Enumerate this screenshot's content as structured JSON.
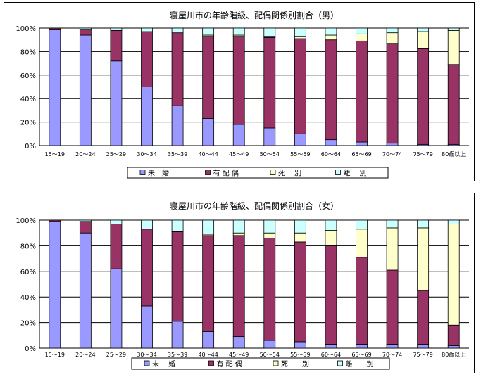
{
  "chart_data": [
    {
      "type": "bar",
      "stacked": true,
      "percent": true,
      "title": "寝屋川市の年齢階級、配偶関係別割合（男）",
      "categories": [
        "15～19",
        "20～24",
        "25～29",
        "30～34",
        "35～39",
        "40～44",
        "45～49",
        "50～54",
        "55～59",
        "60～64",
        "65～69",
        "70～74",
        "75～79",
        "80歳以上"
      ],
      "yticks": [
        "0%",
        "20%",
        "40%",
        "60%",
        "80%",
        "100%"
      ],
      "ylim": [
        0,
        100
      ],
      "grid": true,
      "legend_position": "bottom",
      "series": [
        {
          "name": "未　婚",
          "color": "#9999ff",
          "values": [
            99,
            94,
            72,
            50,
            34,
            23,
            18,
            15,
            10,
            5,
            3,
            2,
            1,
            1
          ]
        },
        {
          "name": "有 配 偶",
          "color": "#993366",
          "values": [
            1,
            5,
            26,
            47,
            62,
            70,
            75,
            77,
            81,
            85,
            86,
            85,
            82,
            68
          ]
        },
        {
          "name": "死　 別",
          "color": "#ffffcc",
          "values": [
            0,
            0,
            0,
            0,
            0,
            1,
            1,
            1,
            2,
            4,
            6,
            9,
            14,
            29
          ]
        },
        {
          "name": "離　 別",
          "color": "#ccffff",
          "values": [
            0,
            1,
            2,
            3,
            4,
            6,
            6,
            7,
            7,
            6,
            5,
            4,
            3,
            2
          ]
        }
      ]
    },
    {
      "type": "bar",
      "stacked": true,
      "percent": true,
      "title": "寝屋川市の年齢階級、配偶関係別割合（女）",
      "categories": [
        "15～19",
        "20～24",
        "25～29",
        "30～34",
        "35～39",
        "40～44",
        "45～49",
        "50～54",
        "55～59",
        "60～64",
        "65～69",
        "70～74",
        "75～79",
        "80歳以上"
      ],
      "yticks": [
        "0%",
        "20%",
        "40%",
        "60%",
        "80%",
        "100%"
      ],
      "ylim": [
        0,
        100
      ],
      "grid": true,
      "legend_position": "bottom",
      "series": [
        {
          "name": "未　 婚",
          "color": "#9999ff",
          "values": [
            99,
            90,
            62,
            33,
            21,
            13,
            9,
            6,
            5,
            3,
            3,
            3,
            3,
            2
          ]
        },
        {
          "name": "有 配 偶",
          "color": "#993366",
          "values": [
            1,
            9,
            35,
            60,
            70,
            75,
            79,
            80,
            78,
            77,
            68,
            58,
            42,
            16
          ]
        },
        {
          "name": "死　　別",
          "color": "#ffffcc",
          "values": [
            0,
            0,
            0,
            0,
            0,
            1,
            2,
            4,
            7,
            12,
            22,
            33,
            49,
            79
          ]
        },
        {
          "name": "離　　別",
          "color": "#ccffff",
          "values": [
            0,
            1,
            3,
            7,
            9,
            11,
            10,
            10,
            10,
            8,
            7,
            6,
            6,
            3
          ]
        }
      ]
    }
  ]
}
